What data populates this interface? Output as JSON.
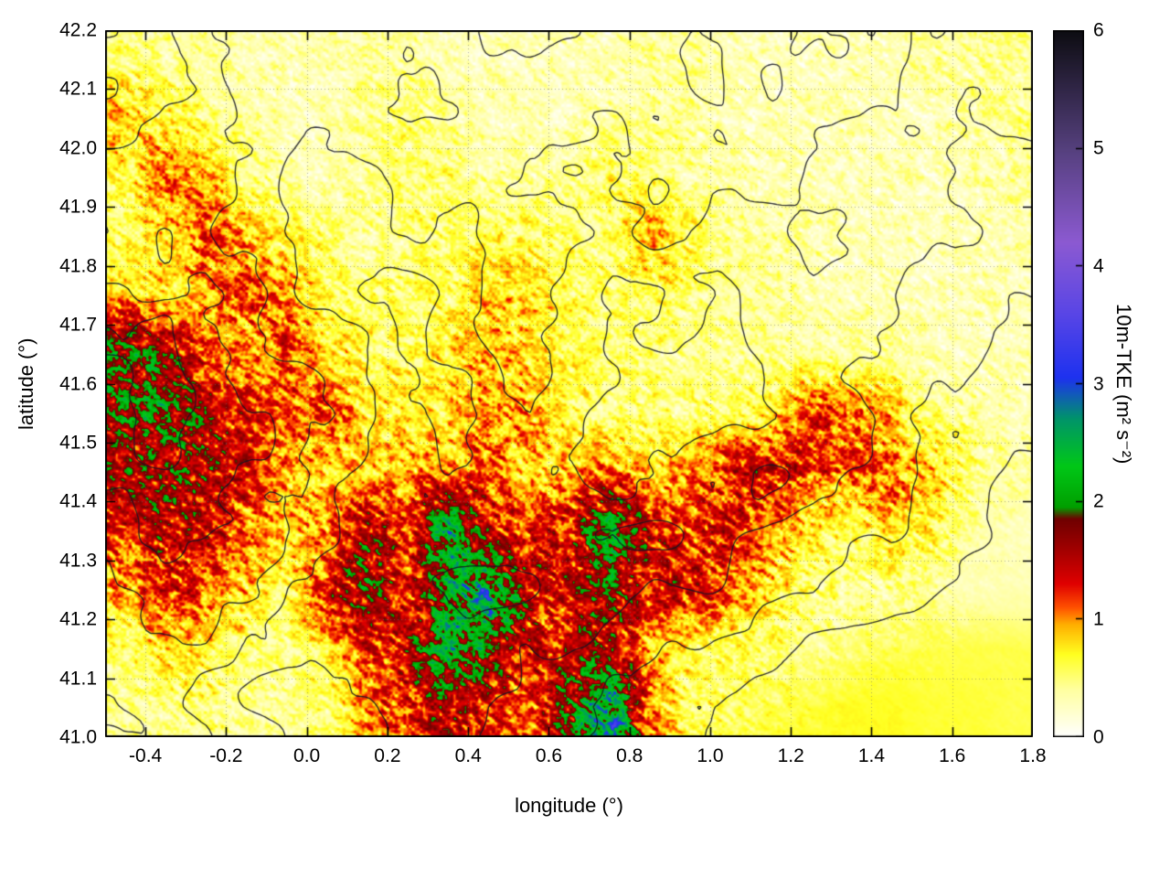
{
  "figure": {
    "background": "#ffffff",
    "border_color": "#000000",
    "grid_line_color": "#6e6e6e",
    "xlabel": "longitude (°)",
    "ylabel": "latitude (°)",
    "x_ticks": [
      {
        "label": "-0.4",
        "value": -0.4
      },
      {
        "label": "-0.2",
        "value": -0.2
      },
      {
        "label": "0.0",
        "value": 0.0
      },
      {
        "label": "0.2",
        "value": 0.2
      },
      {
        "label": "0.4",
        "value": 0.4
      },
      {
        "label": "0.6",
        "value": 0.6
      },
      {
        "label": "0.8",
        "value": 0.8
      },
      {
        "label": "1.0",
        "value": 1.0
      },
      {
        "label": "1.2",
        "value": 1.2
      },
      {
        "label": "1.4",
        "value": 1.4
      },
      {
        "label": "1.6",
        "value": 1.6
      },
      {
        "label": "1.8",
        "value": 1.8
      }
    ],
    "y_ticks": [
      {
        "label": "41.0",
        "value": 41.0
      },
      {
        "label": "41.1",
        "value": 41.1
      },
      {
        "label": "41.2",
        "value": 41.2
      },
      {
        "label": "41.3",
        "value": 41.3
      },
      {
        "label": "41.4",
        "value": 41.4
      },
      {
        "label": "41.5",
        "value": 41.5
      },
      {
        "label": "41.6",
        "value": 41.6
      },
      {
        "label": "41.7",
        "value": 41.7
      },
      {
        "label": "41.8",
        "value": 41.8
      },
      {
        "label": "41.9",
        "value": 41.9
      },
      {
        "label": "42.0",
        "value": 42.0
      },
      {
        "label": "42.1",
        "value": 42.1
      },
      {
        "label": "42.2",
        "value": 42.2
      }
    ]
  },
  "colorbar": {
    "label": "10m-TKE (m² s⁻²)",
    "min": 0,
    "max": 6,
    "ticks": [
      {
        "label": "0",
        "value": 0
      },
      {
        "label": "1",
        "value": 1
      },
      {
        "label": "2",
        "value": 2
      },
      {
        "label": "3",
        "value": 3
      },
      {
        "label": "4",
        "value": 4
      },
      {
        "label": "5",
        "value": 5
      },
      {
        "label": "6",
        "value": 6
      }
    ],
    "palette": [
      [
        0,
        "#ffffff"
      ],
      [
        0.4,
        "#ffffa0"
      ],
      [
        0.7,
        "#ffff20"
      ],
      [
        0.95,
        "#ffb000"
      ],
      [
        1.1,
        "#ff5000"
      ],
      [
        1.3,
        "#e00000"
      ],
      [
        1.6,
        "#a00000"
      ],
      [
        1.85,
        "#700000"
      ],
      [
        1.95,
        "#00a000"
      ],
      [
        2.3,
        "#00c818"
      ],
      [
        2.7,
        "#00956a"
      ],
      [
        3.05,
        "#1e32f0"
      ],
      [
        3.6,
        "#5a46e6"
      ],
      [
        4.2,
        "#8c5ad2"
      ],
      [
        5,
        "#55407d"
      ],
      [
        6,
        "#0d0d12"
      ]
    ]
  },
  "chart_data": {
    "type": "heatmap",
    "title": "",
    "xlabel": "longitude (°)",
    "ylabel": "latitude (°)",
    "xlim": [
      -0.5,
      1.8
    ],
    "ylim": [
      41.0,
      42.2
    ],
    "colorbar_label": "10m-TKE (m² s⁻²)",
    "colorbar_range": [
      0,
      6
    ],
    "grid": {
      "lon_start": -0.45,
      "lon_step": 0.1,
      "lat_start": 42.15,
      "lat_step": -0.1
    },
    "tke_values": [
      [
        0.5,
        0.4,
        0.4,
        0.3,
        0.3,
        0.3,
        0.4,
        0.4,
        0.3,
        0.3,
        0.3,
        0.3,
        0.3,
        0.4,
        0.4,
        0.3,
        0.3,
        0.3,
        0.3,
        0.3,
        0.4,
        0.4,
        0.4
      ],
      [
        0.9,
        0.7,
        0.5,
        0.4,
        0.3,
        0.3,
        0.4,
        0.5,
        0.4,
        0.3,
        0.3,
        0.3,
        0.4,
        0.4,
        0.4,
        0.3,
        0.3,
        0.3,
        0.3,
        0.3,
        0.3,
        0.4,
        0.4
      ],
      [
        0.6,
        1.1,
        0.9,
        0.5,
        0.4,
        0.3,
        0.4,
        0.5,
        0.5,
        0.4,
        0.4,
        0.4,
        0.6,
        0.5,
        0.4,
        0.4,
        0.3,
        0.3,
        0.3,
        0.3,
        0.3,
        0.3,
        0.4
      ],
      [
        0.5,
        0.9,
        1.1,
        0.9,
        0.6,
        0.5,
        0.4,
        0.5,
        0.5,
        0.6,
        0.6,
        0.5,
        0.5,
        1.0,
        0.6,
        0.4,
        0.4,
        0.4,
        0.3,
        0.3,
        0.3,
        0.3,
        0.3
      ],
      [
        0.8,
        0.7,
        0.9,
        1.2,
        1.0,
        0.6,
        0.5,
        0.5,
        0.6,
        0.8,
        0.8,
        0.6,
        0.5,
        0.6,
        0.5,
        0.4,
        0.4,
        0.3,
        0.3,
        0.3,
        0.3,
        0.3,
        0.3
      ],
      [
        2.1,
        1.6,
        1.2,
        0.9,
        1.2,
        0.8,
        0.6,
        0.6,
        0.7,
        0.9,
        0.8,
        0.6,
        0.5,
        0.5,
        0.4,
        0.4,
        0.4,
        0.4,
        0.4,
        0.4,
        0.3,
        0.3,
        0.3
      ],
      [
        1.8,
        1.9,
        1.5,
        1.2,
        1.0,
        1.2,
        0.7,
        0.7,
        0.7,
        1.0,
        0.9,
        0.6,
        0.5,
        0.5,
        0.5,
        0.5,
        0.7,
        1.2,
        1.1,
        0.8,
        0.5,
        0.4,
        0.3
      ],
      [
        1.6,
        1.7,
        1.6,
        1.3,
        1.0,
        0.8,
        0.8,
        0.9,
        1.0,
        1.1,
        0.8,
        0.9,
        1.0,
        0.8,
        0.9,
        1.3,
        1.4,
        1.2,
        1.0,
        1.1,
        0.8,
        0.5,
        0.4
      ],
      [
        1.2,
        1.5,
        1.4,
        1.0,
        0.8,
        1.0,
        1.6,
        1.2,
        2.4,
        1.4,
        1.2,
        1.4,
        2.2,
        1.5,
        1.2,
        1.3,
        1.0,
        0.7,
        0.6,
        0.8,
        0.6,
        0.4,
        0.3
      ],
      [
        0.9,
        1.3,
        1.1,
        0.8,
        0.6,
        1.3,
        1.9,
        1.2,
        2.0,
        2.6,
        1.5,
        1.3,
        1.8,
        1.3,
        1.4,
        1.1,
        0.8,
        0.5,
        0.4,
        0.4,
        0.4,
        0.3,
        0.3
      ],
      [
        0.5,
        0.8,
        0.7,
        0.5,
        0.4,
        0.8,
        1.2,
        1.4,
        2.2,
        1.9,
        1.3,
        1.4,
        1.6,
        0.9,
        0.6,
        0.5,
        0.5,
        0.4,
        0.5,
        0.6,
        0.6,
        0.6,
        0.6
      ],
      [
        0.4,
        0.4,
        0.5,
        0.4,
        0.4,
        0.5,
        0.9,
        1.3,
        1.6,
        1.2,
        1.0,
        1.8,
        2.8,
        1.0,
        0.6,
        0.55,
        0.6,
        0.65,
        0.7,
        0.7,
        0.65,
        0.65,
        0.6
      ]
    ],
    "contours": {
      "levels": [
        150,
        300,
        450,
        600,
        750,
        900,
        1050
      ],
      "elevation": [
        [
          700,
          750,
          700,
          650,
          600,
          650,
          700,
          700,
          650,
          600,
          600,
          650,
          700,
          650,
          600,
          650,
          700,
          750,
          700,
          650,
          600,
          550,
          500
        ],
        [
          750,
          800,
          750,
          700,
          650,
          600,
          650,
          700,
          700,
          650,
          600,
          600,
          650,
          700,
          650,
          600,
          650,
          700,
          650,
          600,
          550,
          500,
          450
        ],
        [
          800,
          850,
          800,
          700,
          600,
          550,
          600,
          650,
          700,
          650,
          600,
          550,
          600,
          650,
          600,
          550,
          600,
          650,
          600,
          550,
          500,
          450,
          400
        ],
        [
          850,
          900,
          850,
          750,
          650,
          550,
          500,
          550,
          600,
          650,
          650,
          600,
          550,
          600,
          550,
          500,
          550,
          600,
          550,
          500,
          450,
          400,
          350
        ],
        [
          900,
          950,
          900,
          800,
          700,
          600,
          500,
          450,
          500,
          600,
          650,
          600,
          500,
          450,
          500,
          450,
          500,
          550,
          500,
          450,
          400,
          350,
          300
        ],
        [
          1000,
          1050,
          950,
          850,
          750,
          650,
          550,
          450,
          450,
          550,
          600,
          550,
          450,
          400,
          400,
          400,
          450,
          500,
          450,
          400,
          350,
          300,
          250
        ],
        [
          1050,
          1100,
          1000,
          900,
          800,
          700,
          550,
          450,
          400,
          500,
          550,
          500,
          400,
          350,
          350,
          400,
          500,
          550,
          500,
          400,
          300,
          250,
          200
        ],
        [
          1000,
          1050,
          1000,
          900,
          800,
          650,
          550,
          500,
          450,
          500,
          500,
          450,
          450,
          450,
          500,
          550,
          600,
          550,
          450,
          400,
          300,
          200,
          150
        ],
        [
          900,
          950,
          900,
          800,
          700,
          600,
          550,
          550,
          600,
          600,
          550,
          550,
          600,
          600,
          550,
          500,
          450,
          400,
          350,
          350,
          250,
          150,
          100
        ],
        [
          800,
          850,
          800,
          700,
          600,
          550,
          550,
          600,
          650,
          650,
          600,
          550,
          550,
          500,
          450,
          400,
          350,
          300,
          250,
          200,
          150,
          100,
          50
        ],
        [
          700,
          750,
          700,
          600,
          500,
          450,
          500,
          550,
          600,
          550,
          500,
          450,
          400,
          350,
          300,
          250,
          200,
          150,
          100,
          80,
          50,
          20,
          0
        ],
        [
          600,
          650,
          600,
          500,
          400,
          350,
          400,
          450,
          500,
          450,
          400,
          350,
          300,
          250,
          200,
          150,
          100,
          50,
          20,
          0,
          0,
          0,
          0
        ]
      ]
    }
  }
}
